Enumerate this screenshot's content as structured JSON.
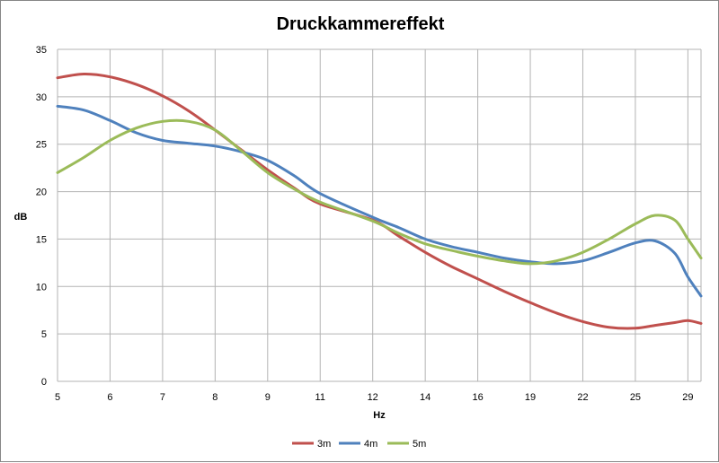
{
  "chart_data": {
    "type": "line",
    "title": "Druckkammereffekt",
    "xlabel": "Hz",
    "ylabel": "dB",
    "ylim": [
      0,
      35
    ],
    "y_ticks": [
      "0",
      "5",
      "10",
      "15",
      "20",
      "25",
      "30",
      "35"
    ],
    "x_tick_labels": [
      "5",
      "6",
      "7",
      "8",
      "9",
      "11",
      "12",
      "14",
      "16",
      "19",
      "22",
      "25",
      "29"
    ],
    "grid": true,
    "legend_position": "bottom",
    "series": [
      {
        "name": "3m",
        "color": "#C0504D",
        "points": [
          [
            5,
            32
          ],
          [
            5.5,
            32.4
          ],
          [
            6,
            32.1
          ],
          [
            6.5,
            31.3
          ],
          [
            7,
            30.1
          ],
          [
            7.5,
            28.5
          ],
          [
            8,
            26.5
          ],
          [
            8.5,
            24.4
          ],
          [
            9,
            22.3
          ],
          [
            10,
            20.4
          ],
          [
            11,
            18.7
          ],
          [
            12,
            17.0
          ],
          [
            13,
            15.3
          ],
          [
            14,
            13.6
          ],
          [
            15,
            12.1
          ],
          [
            16,
            10.8
          ],
          [
            17.5,
            9.5
          ],
          [
            19,
            8.3
          ],
          [
            20.5,
            7.2
          ],
          [
            22,
            6.3
          ],
          [
            23.5,
            5.7
          ],
          [
            25,
            5.6
          ],
          [
            26.5,
            5.9
          ],
          [
            28,
            6.2
          ],
          [
            29,
            6.4
          ],
          [
            30,
            6.1
          ]
        ]
      },
      {
        "name": "4m",
        "color": "#4F81BD",
        "points": [
          [
            5,
            29
          ],
          [
            5.5,
            28.6
          ],
          [
            6,
            27.5
          ],
          [
            6.5,
            26.2
          ],
          [
            7,
            25.4
          ],
          [
            7.5,
            25.1
          ],
          [
            8,
            24.8
          ],
          [
            8.5,
            24.2
          ],
          [
            9,
            23.3
          ],
          [
            10,
            21.7
          ],
          [
            11,
            19.8
          ],
          [
            12,
            17.3
          ],
          [
            13,
            16.2
          ],
          [
            14,
            15.0
          ],
          [
            15,
            14.2
          ],
          [
            16,
            13.6
          ],
          [
            17.5,
            13.0
          ],
          [
            19,
            12.6
          ],
          [
            20.5,
            12.4
          ],
          [
            22,
            12.7
          ],
          [
            23.5,
            13.6
          ],
          [
            25,
            14.6
          ],
          [
            26.5,
            14.8
          ],
          [
            28,
            13.5
          ],
          [
            29,
            11.0
          ],
          [
            30,
            9.0
          ]
        ]
      },
      {
        "name": "5m",
        "color": "#9BBB59",
        "points": [
          [
            5,
            22
          ],
          [
            5.5,
            23.6
          ],
          [
            6,
            25.4
          ],
          [
            6.5,
            26.7
          ],
          [
            7,
            27.4
          ],
          [
            7.5,
            27.4
          ],
          [
            8,
            26.5
          ],
          [
            8.5,
            24.3
          ],
          [
            9,
            22.0
          ],
          [
            10,
            20.3
          ],
          [
            11,
            18.9
          ],
          [
            12,
            16.9
          ],
          [
            13,
            15.6
          ],
          [
            14,
            14.5
          ],
          [
            15,
            13.8
          ],
          [
            16,
            13.2
          ],
          [
            17.5,
            12.7
          ],
          [
            19,
            12.4
          ],
          [
            20.5,
            12.7
          ],
          [
            22,
            13.6
          ],
          [
            23.5,
            15.0
          ],
          [
            25,
            16.6
          ],
          [
            26.5,
            17.5
          ],
          [
            28,
            17.0
          ],
          [
            29,
            15.0
          ],
          [
            30,
            13.0
          ]
        ]
      }
    ]
  }
}
